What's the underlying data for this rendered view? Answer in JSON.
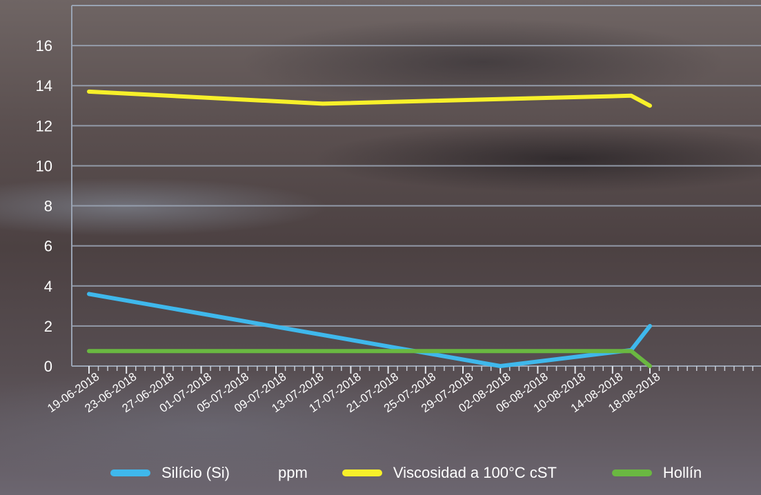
{
  "chart_data": {
    "type": "line",
    "categories": [
      "19-06-2018",
      "23-06-2018",
      "27-06-2018",
      "01-07-2018",
      "05-07-2018",
      "09-07-2018",
      "13-07-2018",
      "17-07-2018",
      "21-07-2018",
      "25-07-2018",
      "29-07-2018",
      "02-08-2018",
      "06-08-2018",
      "10-08-2018",
      "14-08-2018",
      "18-08-2018"
    ],
    "ylim": [
      0,
      18
    ],
    "yticks": [
      0,
      2,
      4,
      6,
      8,
      10,
      12,
      14,
      16
    ],
    "grid": true,
    "legend_placement": "bottom",
    "series": [
      {
        "name": "Silício (Si)",
        "color": "#3fb8ec",
        "points": [
          [
            "19-06-2018",
            3.6
          ],
          [
            "02-08-2018",
            0.0
          ],
          [
            "16-08-2018",
            0.8
          ],
          [
            "18-08-2018",
            2.0
          ]
        ]
      },
      {
        "name": "Viscosidad a 100°C cST",
        "color": "#f7f02a",
        "points": [
          [
            "19-06-2018",
            13.7
          ],
          [
            "14-07-2018",
            13.1
          ],
          [
            "16-08-2018",
            13.5
          ],
          [
            "18-08-2018",
            13.0
          ]
        ]
      },
      {
        "name": "Hollín",
        "color": "#6ab841",
        "points": [
          [
            "19-06-2018",
            0.75
          ],
          [
            "16-08-2018",
            0.75
          ],
          [
            "18-08-2018",
            0.0
          ]
        ]
      }
    ]
  },
  "legend": {
    "items": [
      {
        "label": "Silício (Si)",
        "color": "#3fb8ec"
      },
      {
        "label": "ppm",
        "color": null
      },
      {
        "label": "Viscosidad a 100°C cST",
        "color": "#f7f02a"
      },
      {
        "label": "Hollín",
        "color": "#6ab841"
      }
    ]
  }
}
